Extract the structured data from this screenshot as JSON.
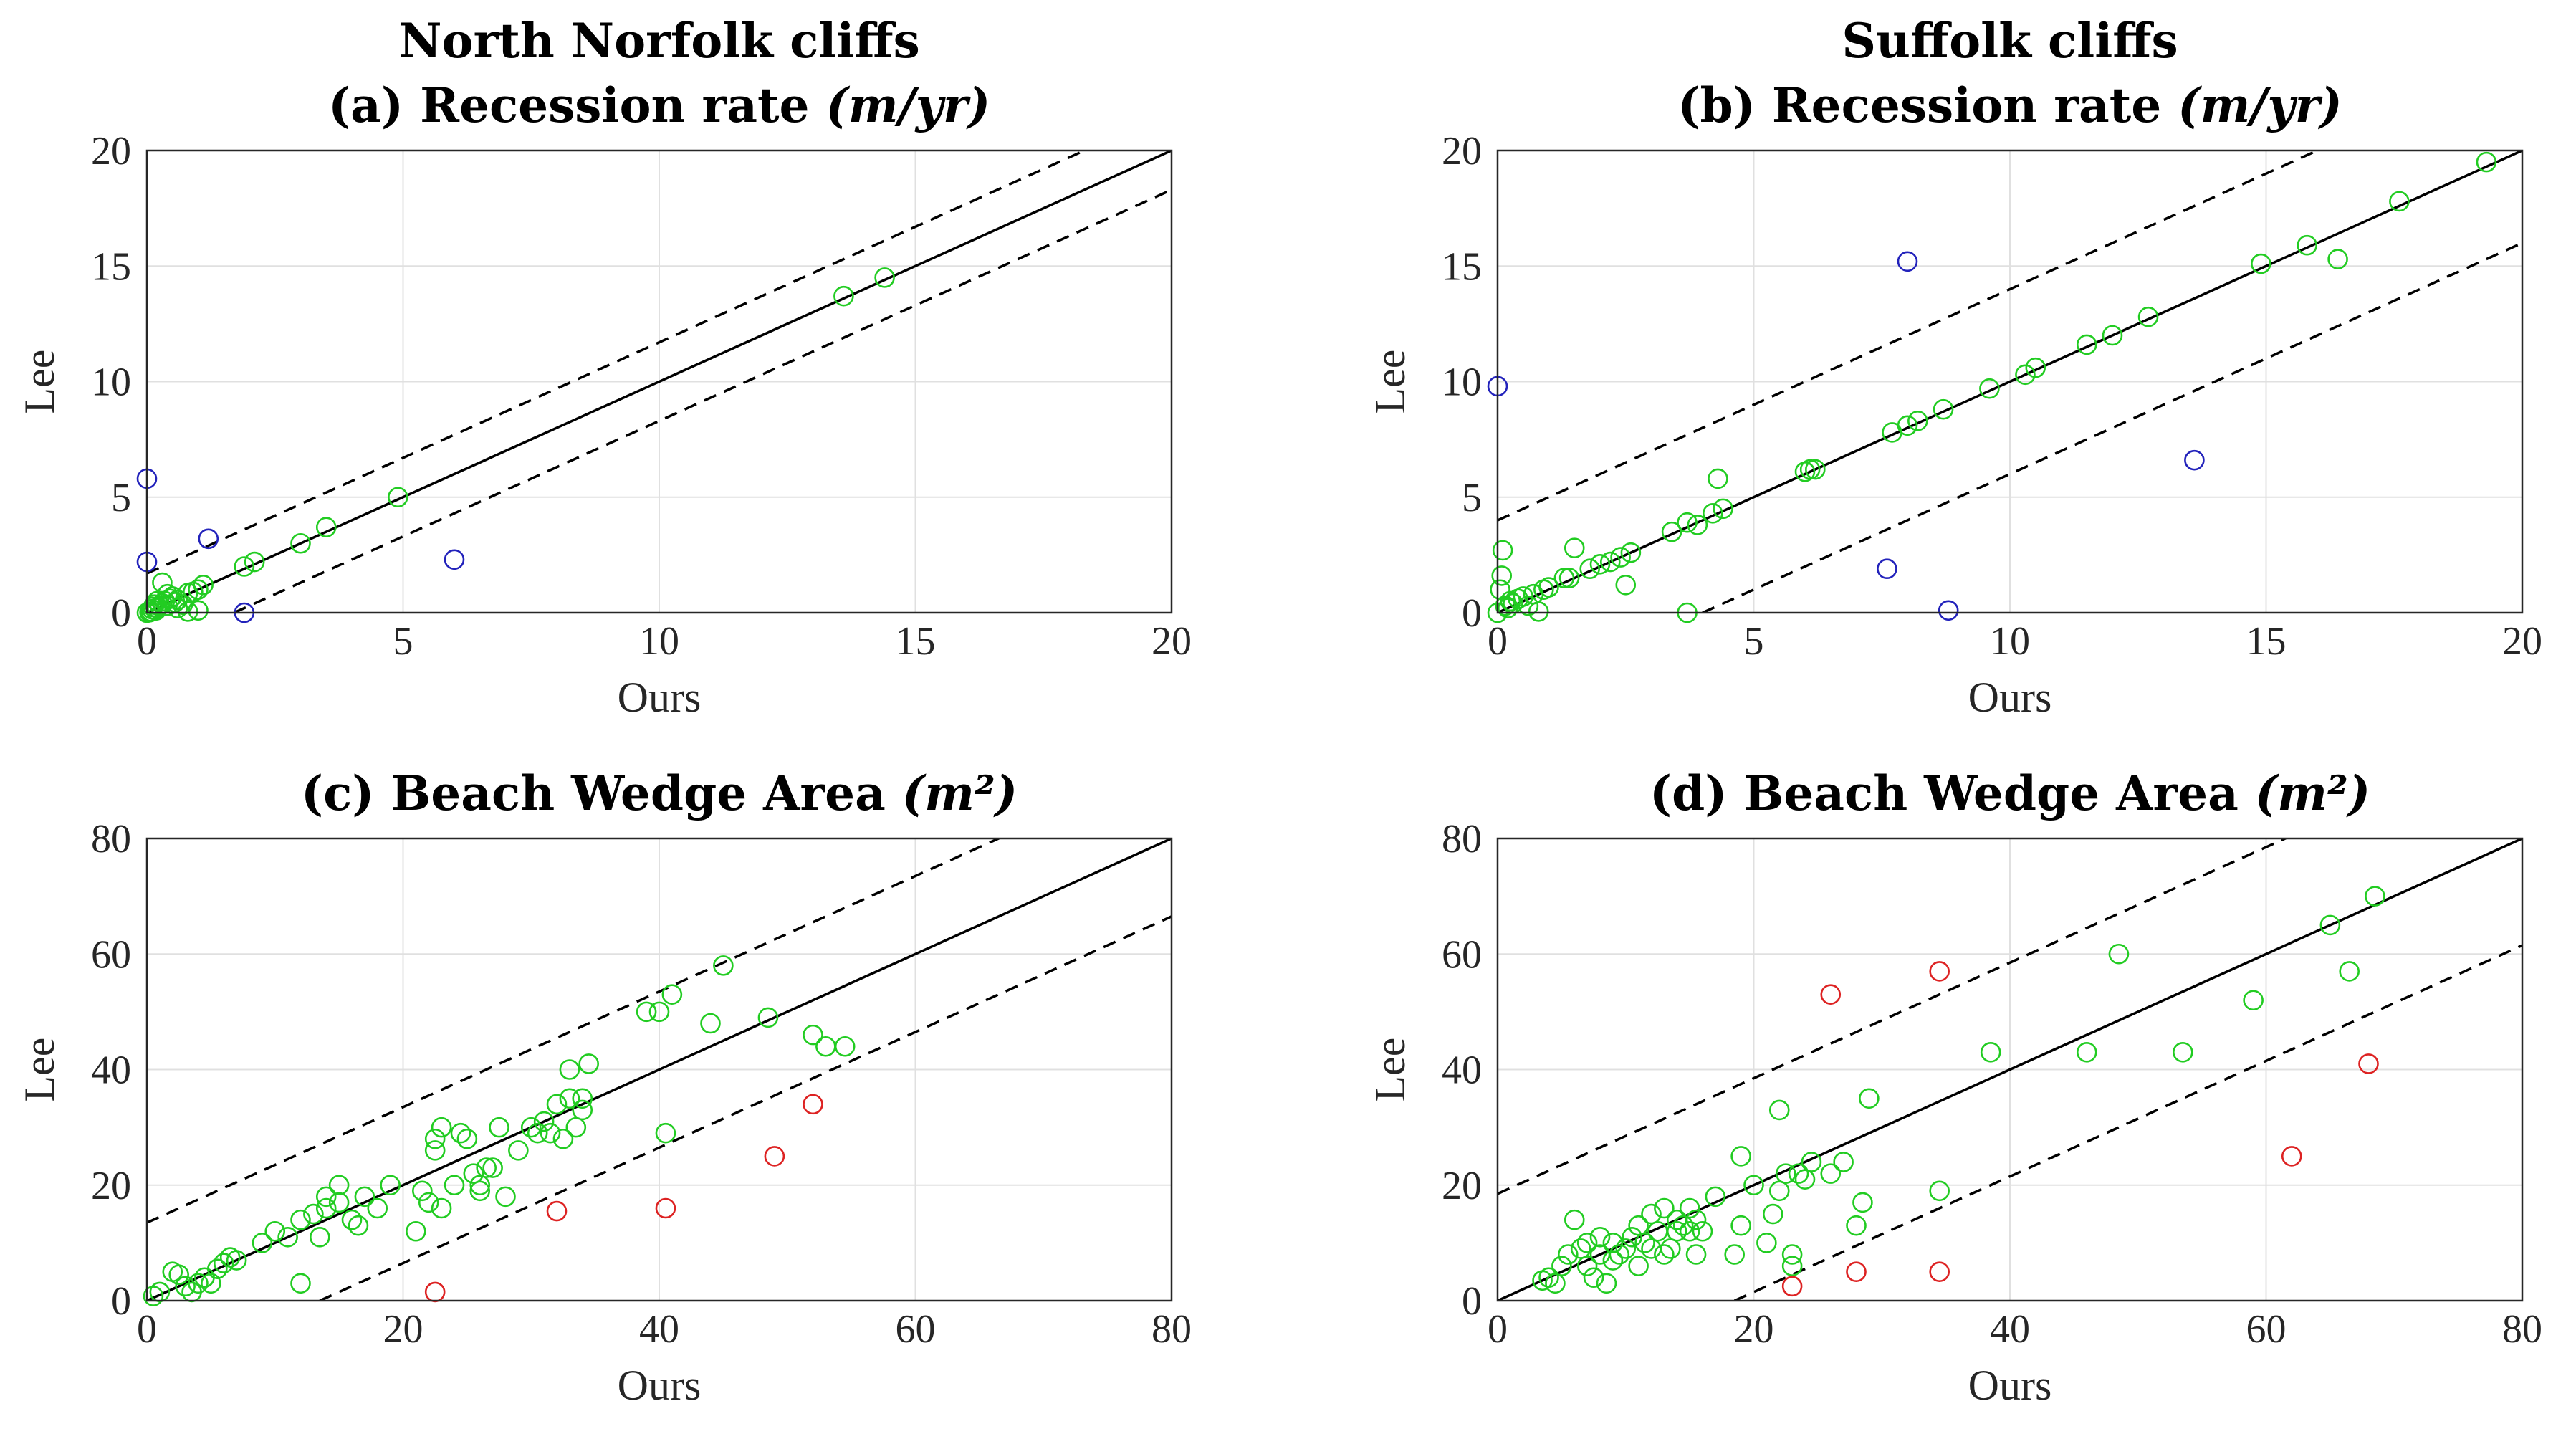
{
  "colors": {
    "green": "#22cc22",
    "blue": "#2222bb",
    "red": "#dd2222"
  },
  "chart_data": [
    {
      "type": "scatter",
      "title": "North Norfolk cliffs",
      "subtitle_prefix": "(a) Recession rate",
      "subtitle_unit": "(m/yr)",
      "xlabel": "Ours",
      "ylabel": "Lee",
      "xlim": [
        0,
        20
      ],
      "ylim": [
        0,
        20
      ],
      "xticks": [
        0,
        5,
        10,
        15,
        20
      ],
      "yticks": [
        0,
        5,
        10,
        15,
        20
      ],
      "grid": true,
      "reference": {
        "identity": true,
        "band_offset": 1.7
      },
      "series": [
        {
          "color": "green",
          "points": [
            [
              0,
              0
            ],
            [
              0.05,
              0.02
            ],
            [
              0.08,
              0.05
            ],
            [
              0.1,
              0.15
            ],
            [
              0.12,
              0.25
            ],
            [
              0.15,
              0.35
            ],
            [
              0.18,
              0.1
            ],
            [
              0.2,
              0.2
            ],
            [
              0.25,
              0.3
            ],
            [
              0.3,
              0.4
            ],
            [
              0.35,
              0.5
            ],
            [
              0.4,
              0.3
            ],
            [
              0.45,
              0.6
            ],
            [
              0.5,
              0.7
            ],
            [
              0.55,
              0.45
            ],
            [
              0.6,
              0.55
            ],
            [
              0.7,
              0.35
            ],
            [
              0.8,
              0.85
            ],
            [
              0.9,
              0.9
            ],
            [
              1.0,
              0.1
            ],
            [
              0.3,
              1.3
            ],
            [
              0.4,
              0.8
            ],
            [
              1.1,
              1.2
            ],
            [
              1.0,
              1.0
            ],
            [
              0.6,
              0.2
            ],
            [
              0.2,
              0.5
            ],
            [
              0.8,
              0.05
            ],
            [
              1.9,
              2.0
            ],
            [
              2.1,
              2.2
            ],
            [
              3.0,
              3.0
            ],
            [
              3.5,
              3.7
            ],
            [
              4.9,
              5.0
            ],
            [
              13.6,
              13.7
            ],
            [
              14.4,
              14.5
            ]
          ]
        },
        {
          "color": "blue",
          "points": [
            [
              0.0,
              5.8
            ],
            [
              0.0,
              2.2
            ],
            [
              1.2,
              3.2
            ],
            [
              1.9,
              0.0
            ],
            [
              6.0,
              2.3
            ]
          ]
        }
      ]
    },
    {
      "type": "scatter",
      "title": "Suffolk cliffs",
      "subtitle_prefix": "(b) Recession rate",
      "subtitle_unit": "(m/yr)",
      "xlabel": "Ours",
      "ylabel": "Lee",
      "xlim": [
        0,
        20
      ],
      "ylim": [
        0,
        20
      ],
      "xticks": [
        0,
        5,
        10,
        15,
        20
      ],
      "yticks": [
        0,
        5,
        10,
        15,
        20
      ],
      "grid": true,
      "reference": {
        "identity": true,
        "band_offset": 4.0
      },
      "series": [
        {
          "color": "green",
          "points": [
            [
              0.0,
              0.0
            ],
            [
              0.05,
              1.0
            ],
            [
              0.08,
              1.6
            ],
            [
              0.1,
              2.7
            ],
            [
              0.15,
              0.3
            ],
            [
              0.2,
              0.2
            ],
            [
              0.25,
              0.5
            ],
            [
              0.3,
              0.4
            ],
            [
              0.4,
              0.6
            ],
            [
              0.5,
              0.7
            ],
            [
              0.6,
              0.3
            ],
            [
              0.7,
              0.8
            ],
            [
              0.8,
              0.05
            ],
            [
              0.9,
              1.0
            ],
            [
              1.0,
              1.1
            ],
            [
              1.3,
              1.5
            ],
            [
              1.4,
              1.5
            ],
            [
              1.5,
              2.8
            ],
            [
              1.8,
              1.9
            ],
            [
              2.0,
              2.1
            ],
            [
              2.2,
              2.2
            ],
            [
              2.4,
              2.4
            ],
            [
              2.5,
              1.2
            ],
            [
              2.6,
              2.6
            ],
            [
              3.4,
              3.5
            ],
            [
              3.7,
              3.9
            ],
            [
              3.9,
              3.8
            ],
            [
              4.2,
              4.3
            ],
            [
              4.3,
              5.8
            ],
            [
              4.4,
              4.5
            ],
            [
              6.0,
              6.1
            ],
            [
              6.1,
              6.2
            ],
            [
              6.2,
              6.2
            ],
            [
              7.7,
              7.8
            ],
            [
              8.0,
              8.1
            ],
            [
              8.2,
              8.3
            ],
            [
              8.7,
              8.8
            ],
            [
              9.6,
              9.7
            ],
            [
              10.3,
              10.3
            ],
            [
              10.5,
              10.6
            ],
            [
              11.5,
              11.6
            ],
            [
              12.0,
              12.0
            ],
            [
              12.7,
              12.8
            ],
            [
              14.9,
              15.1
            ],
            [
              15.8,
              15.9
            ],
            [
              16.4,
              15.3
            ],
            [
              17.6,
              17.8
            ],
            [
              19.3,
              19.5
            ],
            [
              3.7,
              0.0
            ]
          ]
        },
        {
          "color": "blue",
          "points": [
            [
              0.0,
              9.8
            ],
            [
              8.0,
              15.2
            ],
            [
              13.6,
              6.6
            ],
            [
              7.6,
              1.9
            ],
            [
              8.8,
              0.1
            ]
          ]
        }
      ]
    },
    {
      "type": "scatter",
      "title": "",
      "subtitle_prefix": "(c) Beach Wedge Area",
      "subtitle_unit": "(m²)",
      "xlabel": "Ours",
      "ylabel": "Lee",
      "xlim": [
        0,
        80
      ],
      "ylim": [
        0,
        80
      ],
      "xticks": [
        0,
        20,
        40,
        60,
        80
      ],
      "yticks": [
        0,
        20,
        40,
        60,
        80
      ],
      "grid": true,
      "reference": {
        "identity": true,
        "band_offset": 13.5
      },
      "series": [
        {
          "color": "green",
          "points": [
            [
              0.5,
              0.8
            ],
            [
              1,
              1.5
            ],
            [
              2,
              5
            ],
            [
              2.5,
              4.5
            ],
            [
              3,
              2.5
            ],
            [
              3.5,
              1.5
            ],
            [
              4,
              3
            ],
            [
              4.5,
              4
            ],
            [
              5,
              3
            ],
            [
              5.5,
              5.5
            ],
            [
              6,
              6.5
            ],
            [
              6.5,
              7.5
            ],
            [
              7,
              7
            ],
            [
              9,
              10
            ],
            [
              10,
              12
            ],
            [
              11,
              11
            ],
            [
              12,
              14
            ],
            [
              12,
              3
            ],
            [
              13,
              15
            ],
            [
              13.5,
              11
            ],
            [
              14,
              16
            ],
            [
              14,
              18
            ],
            [
              15,
              20
            ],
            [
              15,
              17
            ],
            [
              16,
              14
            ],
            [
              16.5,
              13
            ],
            [
              17,
              18
            ],
            [
              18,
              16
            ],
            [
              19,
              20
            ],
            [
              21,
              12
            ],
            [
              21.5,
              19
            ],
            [
              22,
              17
            ],
            [
              22.5,
              26
            ],
            [
              22.5,
              28
            ],
            [
              23,
              30
            ],
            [
              23,
              16
            ],
            [
              24,
              20
            ],
            [
              24.5,
              29
            ],
            [
              25,
              28
            ],
            [
              25.5,
              22
            ],
            [
              26,
              19
            ],
            [
              26,
              20
            ],
            [
              26.5,
              23
            ],
            [
              27,
              23
            ],
            [
              27.5,
              30
            ],
            [
              28,
              18
            ],
            [
              29,
              26
            ],
            [
              30,
              30
            ],
            [
              30.5,
              29
            ],
            [
              31,
              31
            ],
            [
              31.5,
              29
            ],
            [
              32,
              34
            ],
            [
              32.5,
              28
            ],
            [
              33,
              35
            ],
            [
              33,
              40
            ],
            [
              33.5,
              30
            ],
            [
              34,
              35
            ],
            [
              34,
              33
            ],
            [
              34.5,
              41
            ],
            [
              39,
              50
            ],
            [
              40,
              50
            ],
            [
              40.5,
              29
            ],
            [
              41,
              53
            ],
            [
              44,
              48
            ],
            [
              45,
              58
            ],
            [
              48.5,
              49
            ],
            [
              52,
              46
            ],
            [
              53,
              44
            ],
            [
              54.5,
              44
            ]
          ]
        },
        {
          "color": "red",
          "points": [
            [
              22.5,
              1.5
            ],
            [
              32,
              15.5
            ],
            [
              40.5,
              16
            ],
            [
              49,
              25
            ],
            [
              52,
              34
            ]
          ]
        }
      ]
    },
    {
      "type": "scatter",
      "title": "",
      "subtitle_prefix": "(d) Beach Wedge Area",
      "subtitle_unit": "(m²)",
      "xlabel": "Ours",
      "ylabel": "Lee",
      "xlim": [
        0,
        80
      ],
      "ylim": [
        0,
        80
      ],
      "xticks": [
        0,
        20,
        40,
        60,
        80
      ],
      "yticks": [
        0,
        20,
        40,
        60,
        80
      ],
      "grid": true,
      "reference": {
        "identity": true,
        "band_offset": 18.5
      },
      "series": [
        {
          "color": "green",
          "points": [
            [
              3.5,
              3.5
            ],
            [
              4,
              4
            ],
            [
              4.5,
              3
            ],
            [
              5,
              6
            ],
            [
              5.5,
              8
            ],
            [
              6,
              14
            ],
            [
              6.5,
              9
            ],
            [
              7,
              6
            ],
            [
              7,
              10
            ],
            [
              7.5,
              4
            ],
            [
              8,
              8
            ],
            [
              8,
              11
            ],
            [
              8.5,
              3
            ],
            [
              9,
              7
            ],
            [
              9,
              10
            ],
            [
              9.5,
              8
            ],
            [
              10,
              9
            ],
            [
              10.5,
              11
            ],
            [
              11,
              6
            ],
            [
              11,
              13
            ],
            [
              11.5,
              10
            ],
            [
              12,
              9
            ],
            [
              12,
              15
            ],
            [
              12.5,
              12
            ],
            [
              13,
              16
            ],
            [
              13,
              8
            ],
            [
              13.5,
              9
            ],
            [
              14,
              12
            ],
            [
              14,
              14
            ],
            [
              14.5,
              13
            ],
            [
              15,
              16
            ],
            [
              15,
              12
            ],
            [
              15.5,
              14
            ],
            [
              15.5,
              8
            ],
            [
              16,
              12
            ],
            [
              17,
              18
            ],
            [
              18.5,
              8
            ],
            [
              19,
              13
            ],
            [
              19,
              25
            ],
            [
              20,
              20
            ],
            [
              21,
              10
            ],
            [
              21.5,
              15
            ],
            [
              22,
              19
            ],
            [
              22,
              33
            ],
            [
              22.5,
              22
            ],
            [
              23,
              6
            ],
            [
              23,
              8
            ],
            [
              23.5,
              22
            ],
            [
              24,
              21
            ],
            [
              24.5,
              24
            ],
            [
              26,
              22
            ],
            [
              27,
              24
            ],
            [
              28,
              13
            ],
            [
              28.5,
              17
            ],
            [
              29,
              35
            ],
            [
              34.5,
              19
            ],
            [
              38.5,
              43
            ],
            [
              46,
              43
            ],
            [
              48.5,
              60
            ],
            [
              53.5,
              43
            ],
            [
              59,
              52
            ],
            [
              65,
              65
            ],
            [
              66.5,
              57
            ],
            [
              68.5,
              70
            ]
          ]
        },
        {
          "color": "red",
          "points": [
            [
              23,
              2.5
            ],
            [
              26,
              53
            ],
            [
              28,
              5
            ],
            [
              34.5,
              57
            ],
            [
              34.5,
              5
            ],
            [
              62,
              25
            ],
            [
              68,
              41
            ]
          ]
        }
      ]
    }
  ]
}
